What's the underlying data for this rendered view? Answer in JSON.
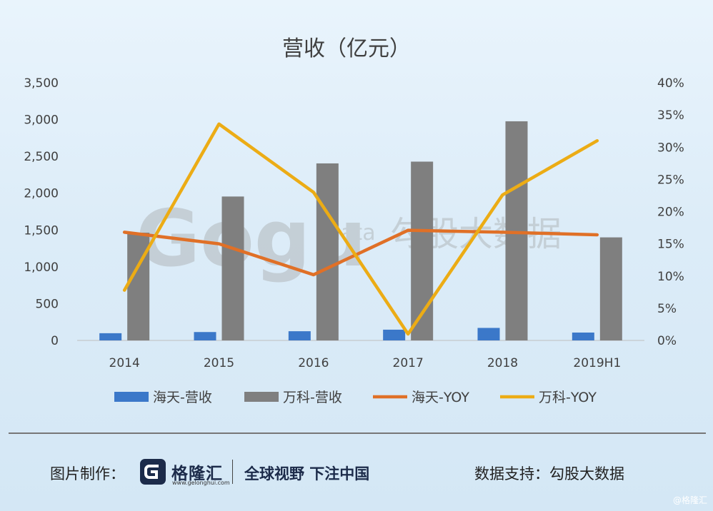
{
  "chart_data": {
    "type": "bar+line",
    "title": "营收（亿元）",
    "categories": [
      "2014",
      "2015",
      "2016",
      "2017",
      "2018",
      "2019H1"
    ],
    "y_left": {
      "min": 0,
      "max": 3500,
      "ticks": [
        "0",
        "500",
        "1,000",
        "1,500",
        "2,000",
        "2,500",
        "3,000",
        "3,500"
      ]
    },
    "y_right": {
      "min": 0,
      "max": 40,
      "ticks": [
        "0%",
        "5%",
        "10%",
        "15%",
        "20%",
        "25%",
        "30%",
        "35%",
        "40%"
      ]
    },
    "series": [
      {
        "name": "海天-营收",
        "type": "bar",
        "axis": "left",
        "color": "#3b78c9",
        "values": [
          98,
          114,
          125,
          146,
          170,
          107
        ]
      },
      {
        "name": "万科-营收",
        "type": "bar",
        "axis": "left",
        "color": "#7f7f7f",
        "values": [
          1464,
          1955,
          2405,
          2429,
          2977,
          1400
        ]
      },
      {
        "name": "海天-YOY",
        "type": "line",
        "axis": "right",
        "color": "#e07027",
        "values": [
          16.8,
          15.0,
          10.2,
          17.1,
          16.8,
          16.4
        ]
      },
      {
        "name": "万科-YOY",
        "type": "line",
        "axis": "right",
        "color": "#ecac15",
        "values": [
          7.8,
          33.6,
          23.0,
          1.0,
          22.6,
          31.0
        ]
      }
    ],
    "legend_position": "bottom",
    "grid": false
  },
  "watermark": {
    "logo": "Gogu",
    "sub": "data",
    "cn": "勾股大数据"
  },
  "footer": {
    "made_by_label": "图片制作：",
    "brand_name": "格隆汇",
    "brand_url": "www.gelonghui.com",
    "slogan": "全球视野 下注中国",
    "data_support": "数据支持：勾股大数据",
    "corner_mark": "@格隆汇"
  }
}
